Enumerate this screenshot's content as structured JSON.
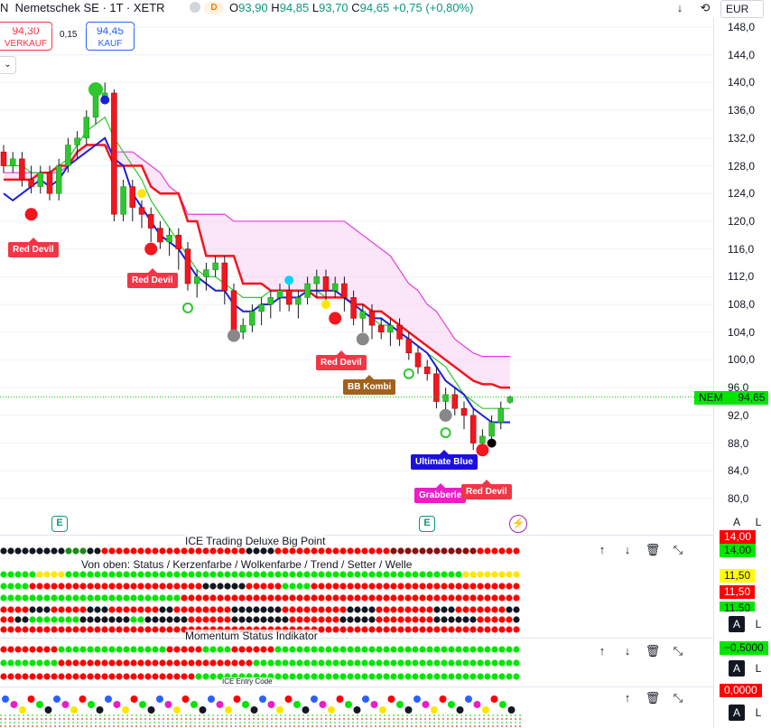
{
  "header": {
    "symbol_prefix": "N",
    "symbol": "Nemetschek SE · 1T · XETR",
    "market_badge": "D",
    "ohlc": {
      "o_label": "O",
      "o": "93,90",
      "h_label": "H",
      "h": "94,85",
      "l_label": "L",
      "l": "93,70",
      "c_label": "C",
      "c": "94,65",
      "change": "+0,75 (+0,80%)"
    },
    "currency": "EUR",
    "down_icon": "arrow-down-icon",
    "sync_icon": "sync-icon"
  },
  "trade": {
    "sell_price": "94,30",
    "sell_label": "VERKAUF",
    "spread": "0,15",
    "buy_price": "94,45",
    "buy_label": "KAUF",
    "collapse_icon": "chevron-down-icon"
  },
  "colors": {
    "up": "#26a69a",
    "down": "#ef5350",
    "red_line": "#f2161f",
    "blue_line": "#1a22d6",
    "green_line": "#2fc72f",
    "cloud": "#f7c6ef",
    "accent": "#2962ff",
    "last_price": "#00c800"
  },
  "chart_data": {
    "type": "candlestick",
    "ylabel": "",
    "ylim": [
      78,
      149
    ],
    "y_ticks": [
      "148,0",
      "144,0",
      "140,0",
      "136,0",
      "132,0",
      "128,0",
      "124,0",
      "120,0",
      "116,0",
      "112,0",
      "108,0",
      "104,0",
      "100,0",
      "96,0",
      "92,0",
      "88,0",
      "84,0",
      "80,0"
    ],
    "last_price_label": "NEM",
    "last_price": "94,65",
    "last_price_value": 94.65,
    "candles": [
      [
        130,
        128,
        131,
        127
      ],
      [
        128,
        129,
        130,
        127
      ],
      [
        129,
        126,
        130,
        125
      ],
      [
        126,
        125,
        128,
        124
      ],
      [
        125,
        127,
        128,
        124
      ],
      [
        127,
        124,
        128,
        123
      ],
      [
        124,
        128,
        129,
        123
      ],
      [
        128,
        131,
        132,
        127
      ],
      [
        131,
        132,
        133,
        129
      ],
      [
        132,
        135,
        136,
        131
      ],
      [
        135,
        138,
        139,
        134
      ],
      [
        138,
        138.5,
        140,
        137
      ],
      [
        138.5,
        121,
        139,
        120
      ],
      [
        121,
        125,
        126,
        120
      ],
      [
        125,
        122,
        126,
        120
      ],
      [
        122,
        121,
        123,
        119
      ],
      [
        121,
        119,
        122,
        117
      ],
      [
        119,
        117,
        120,
        116
      ],
      [
        117,
        118,
        119,
        115
      ],
      [
        118,
        116,
        119,
        113
      ],
      [
        116,
        111,
        117,
        110
      ],
      [
        111,
        112,
        113,
        109
      ],
      [
        112,
        113,
        114,
        110
      ],
      [
        113,
        114,
        115,
        112
      ],
      [
        114,
        110,
        115,
        108
      ],
      [
        110,
        104,
        111,
        103
      ],
      [
        104,
        105,
        106,
        103
      ],
      [
        105,
        107,
        108,
        104
      ],
      [
        107,
        108,
        109,
        105
      ],
      [
        108,
        109,
        110,
        106
      ],
      [
        109,
        110,
        111,
        107
      ],
      [
        110,
        108,
        111,
        107
      ],
      [
        108,
        109,
        110,
        106
      ],
      [
        109,
        111,
        112,
        108
      ],
      [
        111,
        112,
        113,
        109
      ],
      [
        112,
        110,
        113,
        108
      ],
      [
        110,
        111,
        112,
        109
      ],
      [
        111,
        109,
        112,
        107
      ],
      [
        109,
        106,
        110,
        105
      ],
      [
        106,
        107,
        108,
        104
      ],
      [
        107,
        105,
        108,
        103
      ],
      [
        105,
        104,
        106,
        103
      ],
      [
        104,
        105,
        106,
        102
      ],
      [
        105,
        103,
        106,
        102
      ],
      [
        103,
        101,
        104,
        100
      ],
      [
        101,
        99,
        102,
        98
      ],
      [
        99,
        98,
        100,
        97
      ],
      [
        98,
        94,
        99,
        93
      ],
      [
        94,
        95,
        96,
        92
      ],
      [
        95,
        93,
        96,
        92
      ],
      [
        93,
        92,
        94,
        90
      ],
      [
        92,
        88,
        93,
        87
      ],
      [
        88,
        89,
        90,
        87
      ],
      [
        89,
        91,
        92,
        88
      ],
      [
        91,
        93,
        94,
        90
      ],
      [
        93.9,
        94.65,
        94.85,
        93.7
      ]
    ],
    "red_line": [
      126,
      126,
      126,
      126,
      127,
      127,
      128,
      128,
      130,
      131,
      131,
      131,
      128,
      128,
      128,
      128,
      125,
      124,
      124,
      124,
      120,
      120,
      115,
      115,
      115,
      115,
      111,
      111,
      111,
      110,
      110,
      110,
      110,
      110,
      109,
      109,
      109,
      109,
      108,
      108,
      107,
      107,
      106,
      105,
      104,
      103,
      102,
      101,
      100,
      99,
      98,
      97,
      96.5,
      96.5,
      96,
      96
    ],
    "blue_line": [
      124,
      123,
      124,
      125,
      126,
      125,
      126,
      128,
      129,
      130,
      131,
      132,
      129,
      128,
      124,
      122,
      120,
      118,
      117,
      116,
      114,
      112,
      111,
      110,
      110,
      108,
      107,
      107,
      108,
      108,
      109,
      109,
      109,
      110,
      110,
      110,
      110,
      109,
      108,
      107,
      106,
      106,
      105,
      104,
      103,
      102,
      101,
      99,
      97,
      96,
      95,
      93,
      92,
      91,
      91,
      91
    ],
    "green_line": [
      128,
      128,
      128,
      127,
      127,
      127,
      128,
      129,
      131,
      133,
      134,
      135,
      132,
      130,
      128,
      126,
      123,
      121,
      119,
      117,
      115,
      113,
      112,
      112,
      111,
      110,
      109,
      109,
      109,
      110,
      110,
      110,
      110,
      110,
      110,
      109,
      109,
      109,
      108,
      107,
      106,
      105,
      105,
      104,
      103,
      102,
      101,
      100,
      99,
      97,
      95,
      94,
      93,
      93,
      93,
      93
    ],
    "cloud_top": [
      127,
      127,
      127,
      127,
      127,
      127,
      127,
      128,
      129,
      130,
      131,
      131,
      130,
      130,
      130,
      129,
      128,
      127,
      125,
      124,
      121,
      121,
      121,
      121,
      121,
      120,
      120,
      120,
      120,
      120,
      120,
      120,
      120,
      120,
      120,
      120,
      120,
      120,
      119,
      118,
      117,
      116,
      115,
      113,
      111,
      110,
      108,
      107,
      105,
      103,
      102,
      101,
      100.5,
      100.5,
      100.5,
      100.5
    ],
    "annotations": [
      {
        "label": "Red Devil",
        "style": "red"
      },
      {
        "label": "Red Devil",
        "style": "red"
      },
      {
        "label": "Red Devil",
        "style": "red"
      },
      {
        "label": "BB Kombi",
        "style": "brown"
      },
      {
        "label": "Ultimate Blue",
        "style": "blue"
      },
      {
        "label": "Grabberle",
        "style": "pink"
      },
      {
        "label": "Red Devil",
        "style": "red"
      }
    ],
    "earnings_badge": "E",
    "event_icon": "lightning-icon"
  },
  "panes": [
    {
      "title": "ICE Trading Deluxe Big Point",
      "labels": [
        {
          "text": "14,00",
          "color": "#ff0000",
          "fg": "#ffffff"
        },
        {
          "text": "14,00",
          "color": "#00e600",
          "fg": "#131722"
        }
      ],
      "scale_buttons": [
        "A",
        "L"
      ]
    },
    {
      "title": "Von oben: Status / Kerzenfarbe / Wolkenfarbe / Trend / Setter / Welle",
      "labels": [
        {
          "text": "11,50",
          "color": "#ffff00",
          "fg": "#131722"
        },
        {
          "text": "11,50",
          "color": "#ff0000",
          "fg": "#ffffff"
        },
        {
          "text": "11,50",
          "color": "#00e600",
          "fg": "#131722"
        }
      ],
      "scale_buttons": [
        "A",
        "L"
      ]
    },
    {
      "title": "Momentum Status Indikator",
      "labels": [
        {
          "text": "−0,5000",
          "color": "#00e600",
          "fg": "#131722"
        }
      ],
      "scale_buttons": [
        "A",
        "L"
      ]
    },
    {
      "title": "ICE Entry Code",
      "labels": [
        {
          "text": "0,0000",
          "color": "#ff0000",
          "fg": "#ffffff"
        }
      ],
      "scale_buttons": [
        "A",
        "L"
      ]
    }
  ],
  "pane_tools": {
    "up": "↑",
    "down": "↓",
    "delete": "trash-icon",
    "collapse": "collapse-icon"
  }
}
